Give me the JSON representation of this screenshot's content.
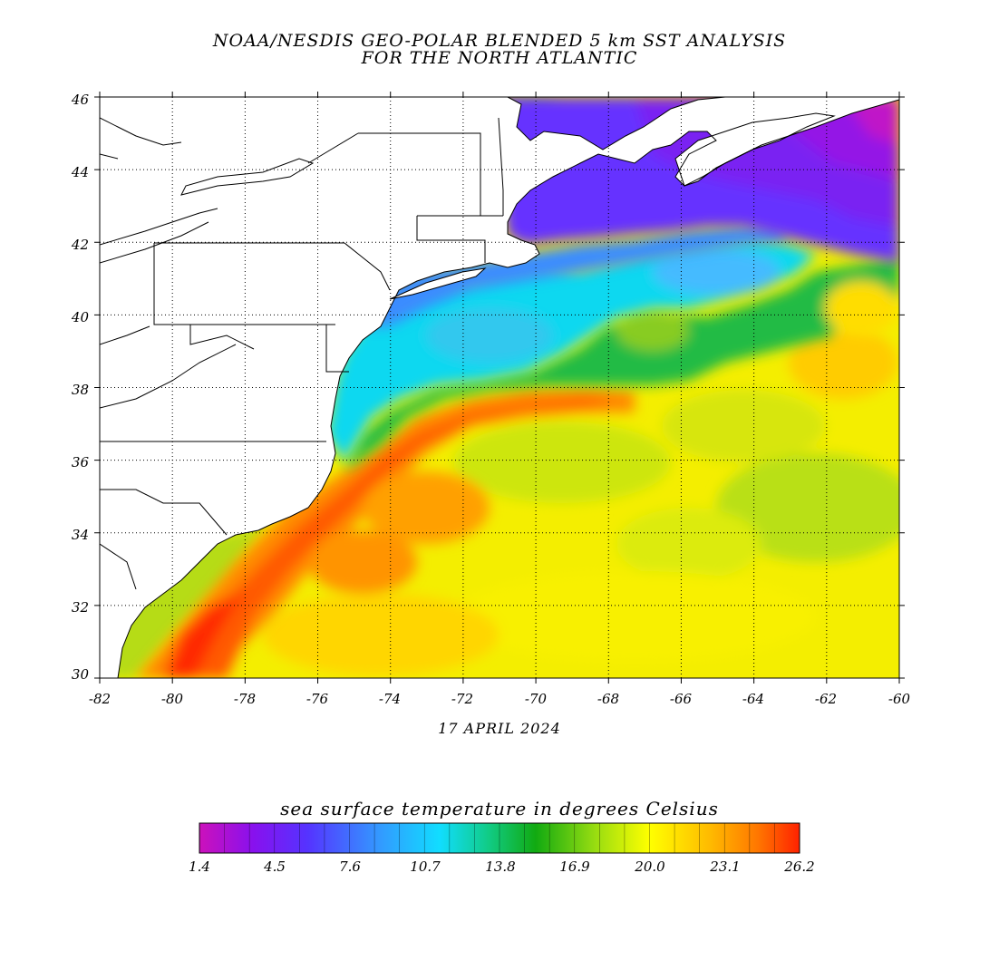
{
  "header": {
    "title_line1": "NOAA/NESDIS GEO-POLAR BLENDED 5 km SST ANALYSIS",
    "title_line2": "FOR THE NORTH ATLANTIC"
  },
  "map": {
    "date": "17 APRIL 2024",
    "lat_range": [
      30,
      46
    ],
    "lon_range": [
      -82,
      -60
    ],
    "lat_labels": [
      "46",
      "44",
      "42",
      "40",
      "38",
      "36",
      "34",
      "32",
      "30"
    ],
    "lon_labels": [
      "-82",
      "-80",
      "-78",
      "-76",
      "-74",
      "-72",
      "-70",
      "-68",
      "-66",
      "-64",
      "-62",
      "-60"
    ]
  },
  "colorbar": {
    "title": "sea surface temperature in degrees Celsius",
    "tick_labels": [
      "1.4",
      "4.5",
      "7.6",
      "10.7",
      "13.8",
      "16.9",
      "20.0",
      "23.1",
      "26.2"
    ],
    "colors": [
      "#cc11bb",
      "#8811ee",
      "#5533ff",
      "#3399ff",
      "#11ddff",
      "#11cc88",
      "#11aa11",
      "#99dd11",
      "#ffff00",
      "#ffbb00",
      "#ff7700",
      "#ff2200"
    ]
  }
}
